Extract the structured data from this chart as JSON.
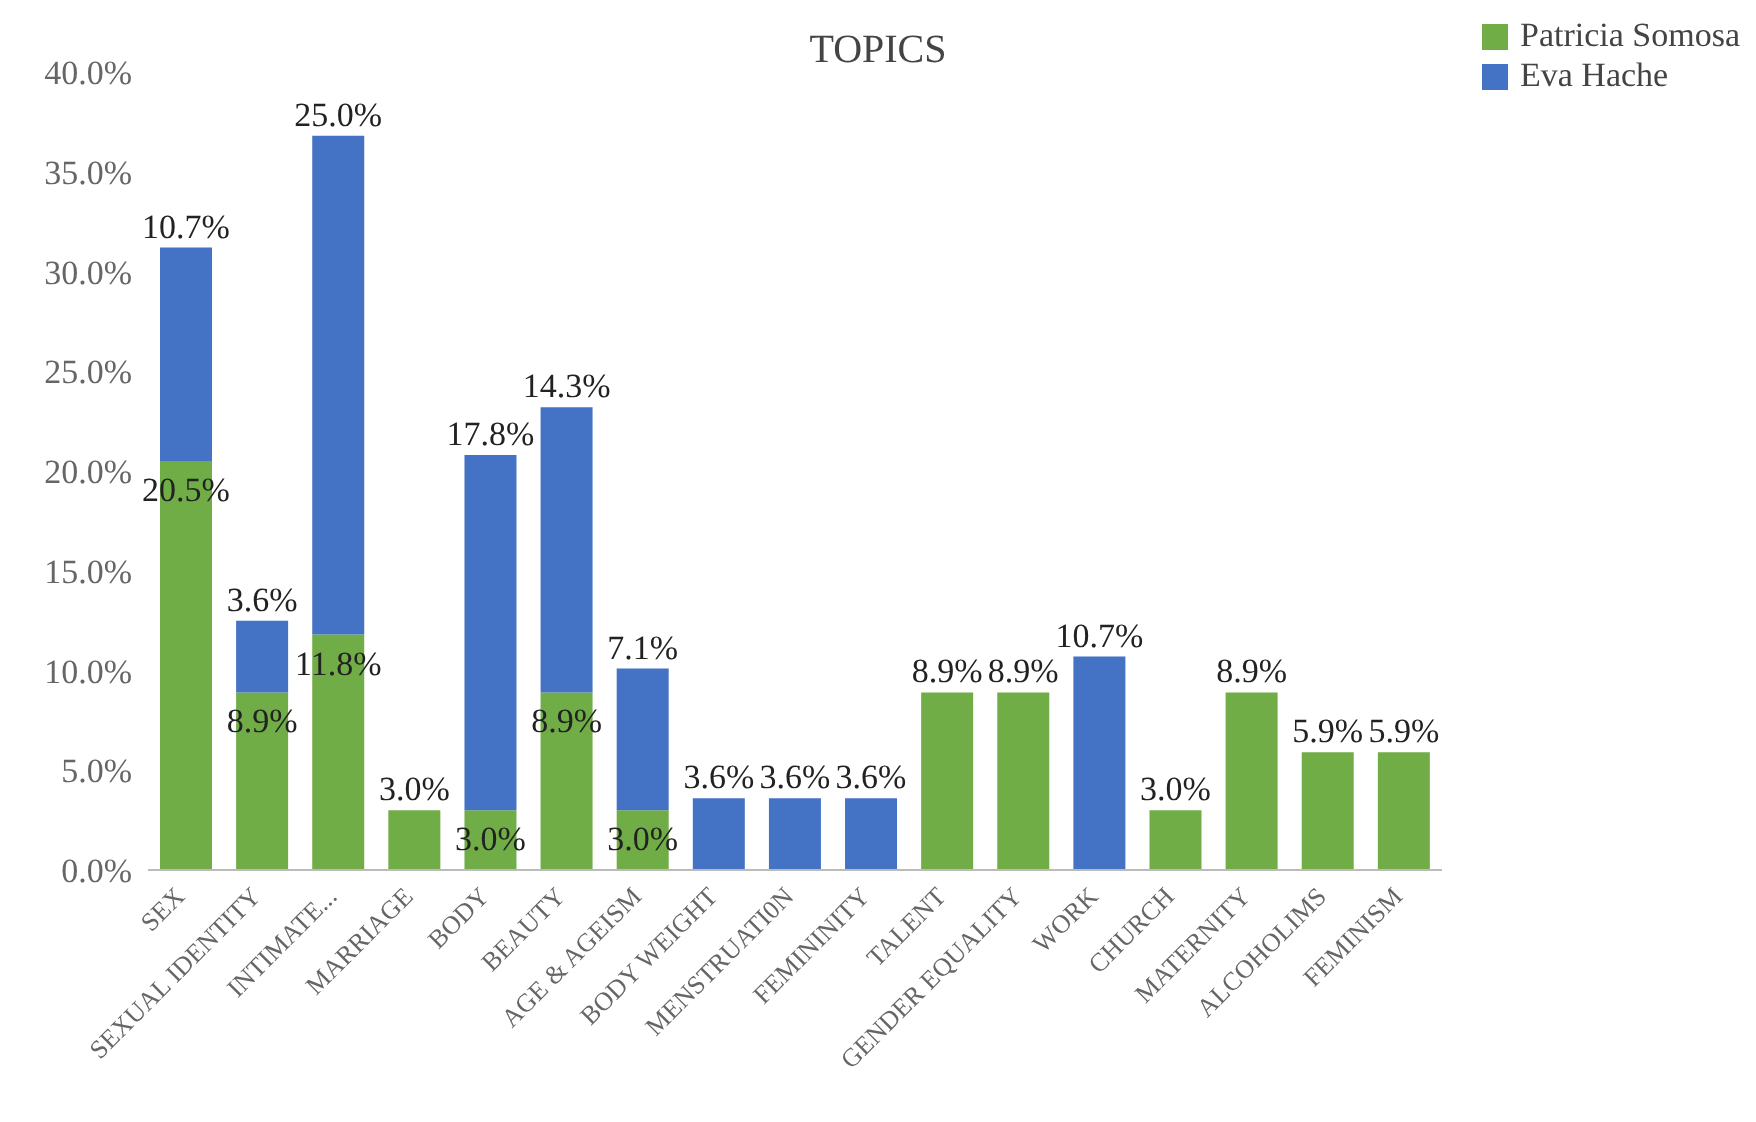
{
  "chart_data": {
    "type": "bar",
    "title": "TOPICS",
    "stacked": true,
    "legend": "top right",
    "grid": false,
    "categories": [
      "SEX",
      "SEXUAL IDENTITY",
      "INTIMATE...",
      "MARRIAGE",
      "BODY",
      "BEAUTY",
      "AGE & AGEISM",
      "BODY WEIGHT",
      "MENSTRUATI0N",
      "FEMININITY",
      "TALENT",
      "GENDER EQUALITY",
      "WORK",
      "CHURCH",
      "MATERNITY",
      "ALCOHOLIMS",
      "FEMINISM"
    ],
    "series": [
      {
        "name": "Patricia Somosa",
        "color": "#70ad47",
        "values": [
          20.5,
          8.9,
          11.8,
          3.0,
          3.0,
          8.9,
          3.0,
          null,
          null,
          null,
          8.9,
          8.9,
          null,
          3.0,
          8.9,
          5.9,
          5.9
        ],
        "value_labels": [
          "20.5%",
          "8.9%",
          "11.8%",
          "3.0%",
          "3.0%",
          "8.9%",
          "3.0%",
          null,
          null,
          null,
          "8.9%",
          "8.9%",
          null,
          "3.0%",
          "8.9%",
          "5.9%",
          "5.9%"
        ]
      },
      {
        "name": "Eva Hache",
        "color": "#4472c4",
        "values": [
          10.7,
          3.6,
          25.0,
          null,
          17.8,
          14.3,
          7.1,
          3.6,
          3.6,
          3.6,
          null,
          null,
          10.7,
          null,
          null,
          null,
          null
        ],
        "value_labels": [
          "10.7%",
          "3.6%",
          "25.0%",
          null,
          "17.8%",
          "14.3%",
          "7.1%",
          "3.6%",
          "3.6%",
          "3.6%",
          null,
          null,
          "10.7%",
          null,
          null,
          null,
          null
        ]
      }
    ],
    "ylim": [
      0,
      40
    ],
    "yticks": [
      {
        "value": 0,
        "label": "0.0%"
      },
      {
        "value": 5,
        "label": "5.0%"
      },
      {
        "value": 10,
        "label": "10.0%"
      },
      {
        "value": 15,
        "label": "15.0%"
      },
      {
        "value": 20,
        "label": "20.0%"
      },
      {
        "value": 25,
        "label": "25.0%"
      },
      {
        "value": 30,
        "label": "30.0%"
      },
      {
        "value": 35,
        "label": "35.0%"
      },
      {
        "value": 40,
        "label": "40.0%"
      }
    ]
  }
}
